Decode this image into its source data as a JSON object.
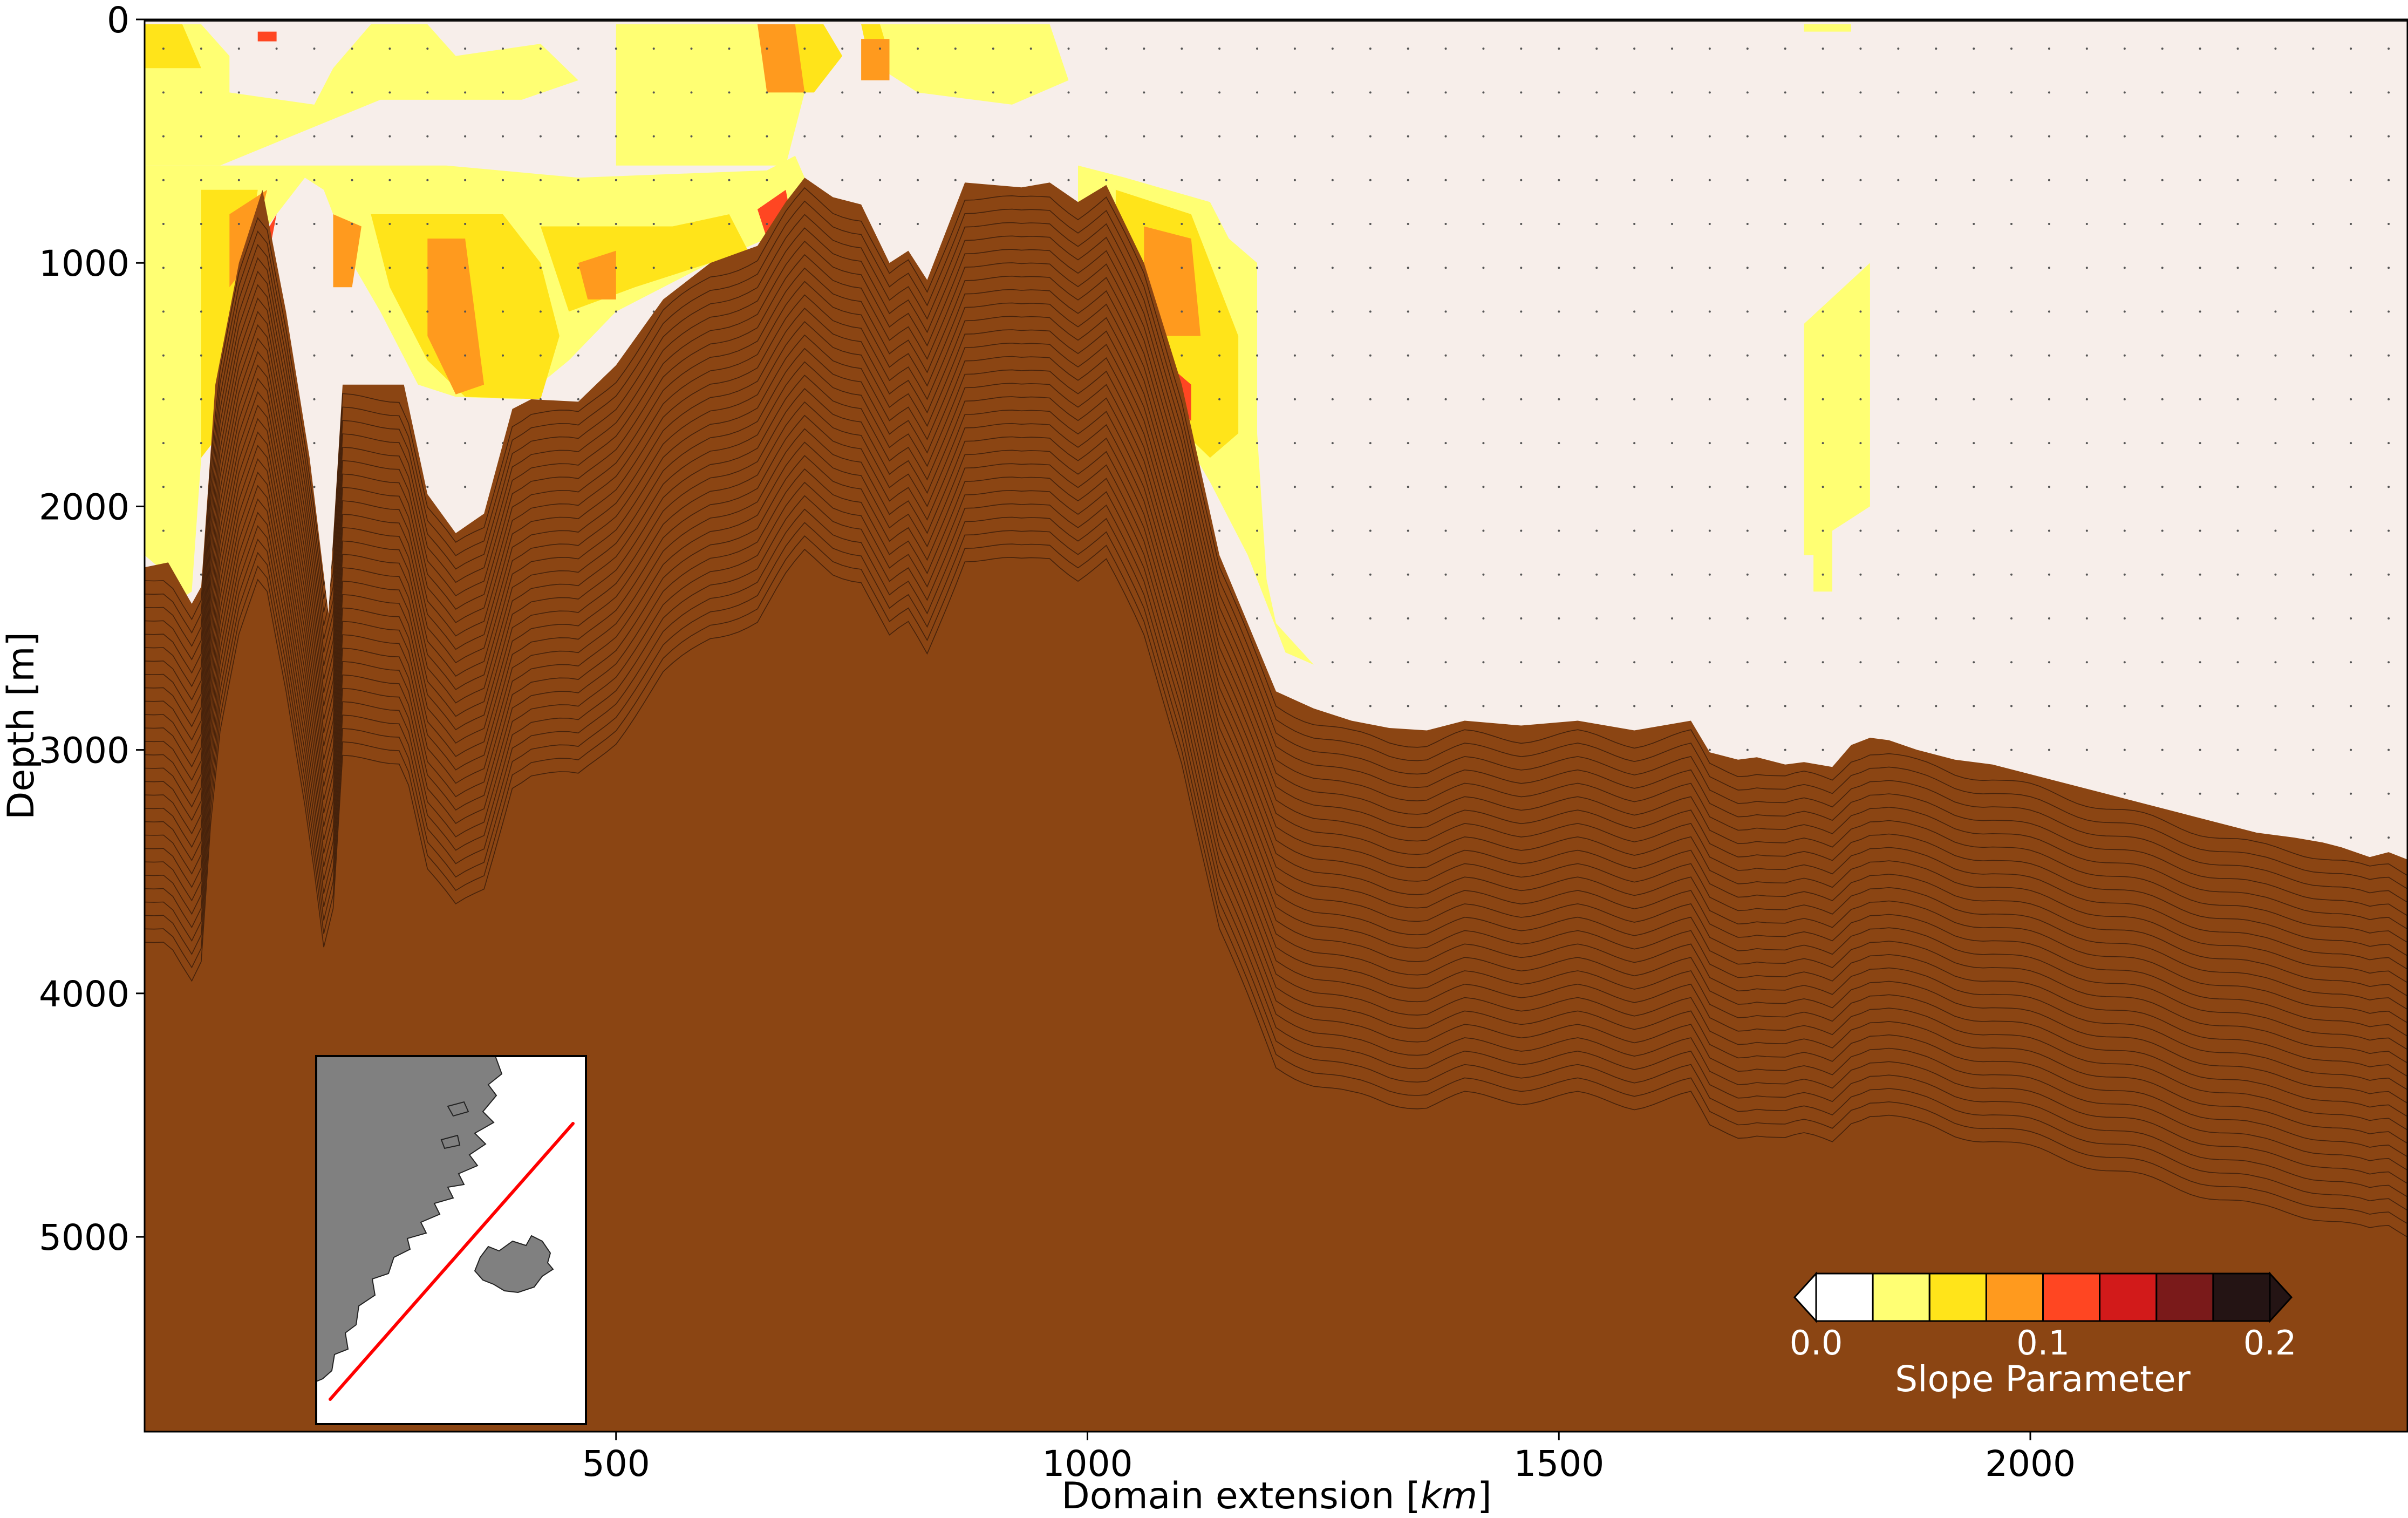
{
  "chart_data": {
    "type": "section",
    "xlabel": "Domain extension [",
    "xlabel_unit": "km",
    "xlabel_close": "]",
    "ylabel": "Depth [m]",
    "xlim": [
      0,
      2400
    ],
    "ylim": [
      5800,
      0
    ],
    "x_ticks": [
      500,
      1000,
      1500,
      2000
    ],
    "x_tick_labels": [
      "500",
      "1000",
      "1500",
      "2000"
    ],
    "y_ticks": [
      0,
      1000,
      2000,
      3000,
      4000,
      5000
    ],
    "y_tick_labels": [
      "0",
      "1000",
      "2000",
      "3000",
      "4000",
      "5000"
    ],
    "grid": false,
    "colors": {
      "water": "#f7eeea",
      "seabed": "#8b4513",
      "contour": "#404040",
      "track": "#ff0000",
      "land": "#808080"
    },
    "bathymetry": {
      "x": [
        0,
        25,
        50,
        60,
        75,
        100,
        125,
        150,
        175,
        195,
        210,
        245,
        275,
        300,
        330,
        360,
        390,
        410,
        460,
        500,
        550,
        600,
        650,
        680,
        700,
        730,
        760,
        790,
        810,
        830,
        870,
        900,
        930,
        960,
        990,
        1020,
        1060,
        1100,
        1140,
        1170,
        1200,
        1240,
        1280,
        1320,
        1360,
        1400,
        1460,
        1520,
        1580,
        1640,
        1660,
        1690,
        1710,
        1740,
        1760,
        1790,
        1810,
        1830,
        1850,
        1880,
        1920,
        1960,
        2000,
        2040,
        2080,
        2120,
        2160,
        2200,
        2240,
        2280,
        2310,
        2330,
        2360,
        2380,
        2400
      ],
      "depth": [
        2250,
        2230,
        2400,
        2330,
        1500,
        1000,
        700,
        1200,
        1800,
        2440,
        1500,
        1500,
        1500,
        1950,
        2110,
        2030,
        1600,
        1560,
        1570,
        1420,
        1150,
        1000,
        930,
        750,
        650,
        730,
        760,
        1000,
        950,
        1070,
        670,
        680,
        690,
        670,
        750,
        680,
        1000,
        1500,
        2200,
        2480,
        2760,
        2830,
        2880,
        2910,
        2920,
        2880,
        2900,
        2880,
        2920,
        2880,
        3010,
        3040,
        3030,
        3060,
        3050,
        3070,
        2980,
        2950,
        2960,
        3000,
        3040,
        3060,
        3100,
        3140,
        3180,
        3220,
        3260,
        3300,
        3340,
        3360,
        3380,
        3400,
        3440,
        3420,
        3450
      ]
    },
    "colorbar": {
      "label": "Slope Parameter",
      "ticks": [
        0.0,
        0.1,
        0.2
      ],
      "tick_labels": [
        "0.0",
        "0.1",
        "0.2"
      ],
      "boundaries": [
        0.0,
        0.025,
        0.05,
        0.075,
        0.1,
        0.125,
        0.15,
        0.175,
        0.2
      ],
      "colors": [
        "#ffffff",
        "#ffff73",
        "#ffe41a",
        "#ff9a1e",
        "#ff4622",
        "#d21a1a",
        "#7a1a1a",
        "#241414"
      ],
      "extend": "both"
    },
    "slope_regions": [
      {
        "level": 1,
        "points": [
          [
            0,
            20
          ],
          [
            60,
            20
          ],
          [
            90,
            150
          ],
          [
            90,
            300
          ],
          [
            180,
            350
          ],
          [
            200,
            200
          ],
          [
            240,
            20
          ],
          [
            300,
            20
          ],
          [
            330,
            150
          ],
          [
            420,
            100
          ],
          [
            460,
            250
          ],
          [
            400,
            330
          ],
          [
            250,
            330
          ],
          [
            80,
            600
          ],
          [
            0,
            600
          ]
        ]
      },
      {
        "level": 1,
        "points": [
          [
            500,
            20
          ],
          [
            680,
            20
          ],
          [
            700,
            300
          ],
          [
            680,
            600
          ],
          [
            500,
            600
          ]
        ]
      },
      {
        "level": 1,
        "points": [
          [
            760,
            20
          ],
          [
            960,
            20
          ],
          [
            980,
            250
          ],
          [
            920,
            350
          ],
          [
            820,
            300
          ],
          [
            780,
            200
          ]
        ]
      },
      {
        "level": 1,
        "points": [
          [
            1760,
            20
          ],
          [
            1810,
            20
          ],
          [
            1810,
            50
          ],
          [
            1760,
            50
          ]
        ]
      },
      {
        "level": 1,
        "points": [
          [
            0,
            600
          ],
          [
            320,
            600
          ],
          [
            460,
            650
          ],
          [
            660,
            620
          ],
          [
            690,
            560
          ],
          [
            700,
            650
          ],
          [
            690,
            850
          ],
          [
            600,
            1000
          ],
          [
            500,
            1200
          ],
          [
            450,
            1400
          ],
          [
            400,
            1560
          ],
          [
            330,
            1550
          ],
          [
            290,
            1500
          ],
          [
            250,
            1200
          ],
          [
            220,
            1000
          ],
          [
            190,
            700
          ],
          [
            170,
            650
          ],
          [
            120,
            900
          ],
          [
            80,
            1300
          ],
          [
            60,
            1800
          ],
          [
            50,
            2350
          ],
          [
            30,
            2400
          ],
          [
            30,
            2300
          ],
          [
            0,
            2200
          ]
        ]
      },
      {
        "level": 1,
        "points": [
          [
            990,
            600
          ],
          [
            1040,
            650
          ],
          [
            1130,
            750
          ],
          [
            1150,
            900
          ],
          [
            1180,
            1000
          ],
          [
            1180,
            1700
          ],
          [
            1190,
            2300
          ],
          [
            1200,
            2480
          ],
          [
            1240,
            2650
          ],
          [
            1210,
            2600
          ],
          [
            1170,
            2200
          ],
          [
            1130,
            1900
          ],
          [
            1100,
            1700
          ],
          [
            1050,
            1300
          ],
          [
            990,
            800
          ]
        ]
      },
      {
        "level": 1,
        "points": [
          [
            1760,
            1250
          ],
          [
            1830,
            1000
          ],
          [
            1830,
            2000
          ],
          [
            1790,
            2100
          ],
          [
            1790,
            2350
          ],
          [
            1770,
            2350
          ],
          [
            1770,
            2200
          ],
          [
            1760,
            2200
          ]
        ]
      },
      {
        "level": 2,
        "points": [
          [
            0,
            20
          ],
          [
            40,
            20
          ],
          [
            60,
            200
          ],
          [
            0,
            200
          ]
        ]
      },
      {
        "level": 2,
        "points": [
          [
            240,
            800
          ],
          [
            380,
            800
          ],
          [
            420,
            1000
          ],
          [
            440,
            1300
          ],
          [
            420,
            1560
          ],
          [
            340,
            1550
          ],
          [
            300,
            1400
          ],
          [
            260,
            1100
          ]
        ]
      },
      {
        "level": 2,
        "points": [
          [
            420,
            850
          ],
          [
            560,
            850
          ],
          [
            620,
            800
          ],
          [
            640,
            950
          ],
          [
            520,
            1100
          ],
          [
            450,
            1200
          ]
        ]
      },
      {
        "level": 2,
        "points": [
          [
            690,
            20
          ],
          [
            720,
            20
          ],
          [
            740,
            150
          ],
          [
            710,
            300
          ],
          [
            690,
            300
          ]
        ]
      },
      {
        "level": 2,
        "points": [
          [
            760,
            20
          ],
          [
            780,
            20
          ],
          [
            790,
            150
          ],
          [
            770,
            200
          ]
        ]
      },
      {
        "level": 2,
        "points": [
          [
            60,
            700
          ],
          [
            120,
            700
          ],
          [
            100,
            1200
          ],
          [
            80,
            1700
          ],
          [
            60,
            1800
          ]
        ]
      },
      {
        "level": 2,
        "points": [
          [
            1030,
            700
          ],
          [
            1110,
            800
          ],
          [
            1130,
            1000
          ],
          [
            1160,
            1300
          ],
          [
            1160,
            1700
          ],
          [
            1130,
            1800
          ],
          [
            1090,
            1650
          ],
          [
            1060,
            1300
          ],
          [
            1030,
            1000
          ]
        ]
      },
      {
        "level": 3,
        "points": [
          [
            300,
            900
          ],
          [
            340,
            900
          ],
          [
            350,
            1200
          ],
          [
            360,
            1500
          ],
          [
            330,
            1540
          ],
          [
            300,
            1300
          ]
        ]
      },
      {
        "level": 3,
        "points": [
          [
            200,
            800
          ],
          [
            230,
            850
          ],
          [
            220,
            1100
          ],
          [
            200,
            1100
          ]
        ]
      },
      {
        "level": 3,
        "points": [
          [
            90,
            800
          ],
          [
            130,
            700
          ],
          [
            110,
            1000
          ],
          [
            90,
            1100
          ]
        ]
      },
      {
        "level": 3,
        "points": [
          [
            650,
            20
          ],
          [
            690,
            20
          ],
          [
            700,
            300
          ],
          [
            660,
            300
          ]
        ]
      },
      {
        "level": 3,
        "points": [
          [
            760,
            80
          ],
          [
            790,
            80
          ],
          [
            790,
            250
          ],
          [
            760,
            250
          ]
        ]
      },
      {
        "level": 3,
        "points": [
          [
            1060,
            850
          ],
          [
            1110,
            900
          ],
          [
            1120,
            1300
          ],
          [
            1080,
            1300
          ],
          [
            1060,
            1100
          ]
        ]
      },
      {
        "level": 3,
        "points": [
          [
            460,
            1000
          ],
          [
            500,
            950
          ],
          [
            500,
            1150
          ],
          [
            470,
            1150
          ]
        ]
      },
      {
        "level": 4,
        "points": [
          [
            110,
            1000
          ],
          [
            140,
            800
          ],
          [
            130,
            1000
          ],
          [
            110,
            1300
          ],
          [
            100,
            1400
          ]
        ]
      },
      {
        "level": 4,
        "points": [
          [
            1080,
            1400
          ],
          [
            1110,
            1500
          ],
          [
            1110,
            1650
          ],
          [
            1090,
            1550
          ]
        ]
      },
      {
        "level": 4,
        "points": [
          [
            650,
            780
          ],
          [
            680,
            700
          ],
          [
            690,
            900
          ],
          [
            660,
            900
          ]
        ]
      },
      {
        "level": 4,
        "points": [
          [
            120,
            50
          ],
          [
            140,
            50
          ],
          [
            140,
            90
          ],
          [
            120,
            90
          ]
        ]
      }
    ],
    "inset": {
      "type": "map",
      "track": "section line"
    }
  }
}
